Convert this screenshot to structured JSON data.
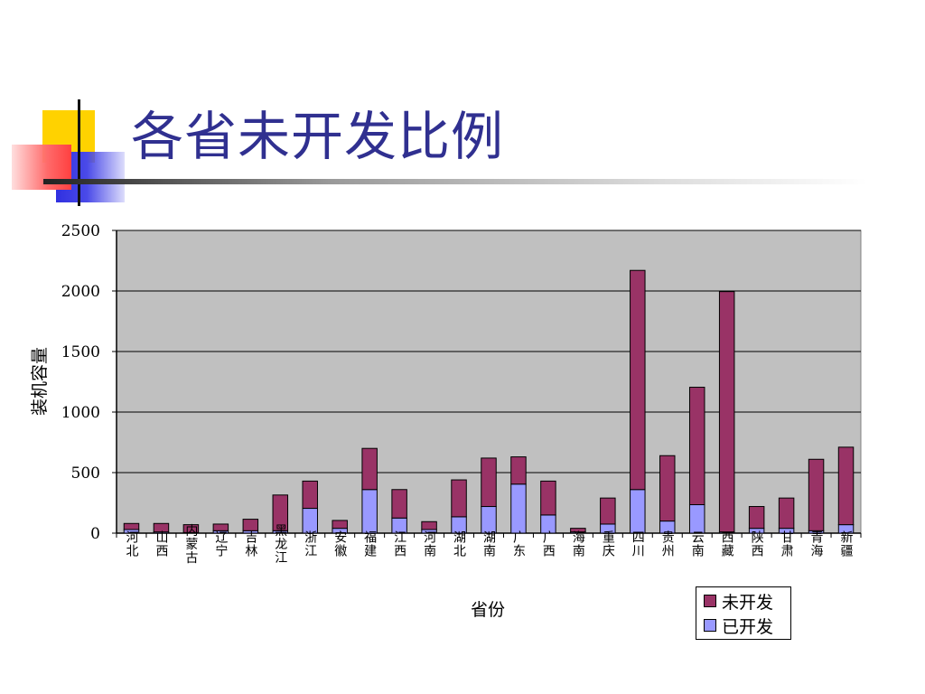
{
  "slide": {
    "title": "各省未开发比例"
  },
  "colors": {
    "developed": "#9999ff",
    "undeveloped": "#993366",
    "plot_bg": "#c0c0c0"
  },
  "chart_data": {
    "type": "bar",
    "stacked": true,
    "xlabel": "省份",
    "ylabel": "装机容量",
    "ylim": [
      0,
      2500
    ],
    "yticks": [
      "0",
      "500",
      "1000",
      "1500",
      "2000",
      "2500"
    ],
    "grid": true,
    "legend_position": "bottom-right",
    "categories": [
      "河北",
      "山西",
      "内蒙古",
      "辽宁",
      "吉林",
      "黑龙江",
      "浙江",
      "安徽",
      "福建",
      "江西",
      "河南",
      "湖北",
      "湖南",
      "广东",
      "广西",
      "海南",
      "重庆",
      "四川",
      "贵州",
      "云南",
      "西藏",
      "陕西",
      "甘肃",
      "青海",
      "新疆"
    ],
    "series": [
      {
        "name": "已开发",
        "values": [
          30,
          10,
          5,
          20,
          20,
          20,
          205,
          40,
          360,
          125,
          30,
          135,
          220,
          405,
          150,
          10,
          75,
          360,
          100,
          235,
          10,
          40,
          40,
          20,
          70
        ]
      },
      {
        "name": "未开发",
        "values": [
          50,
          70,
          65,
          55,
          95,
          295,
          225,
          65,
          340,
          235,
          65,
          305,
          400,
          225,
          280,
          30,
          215,
          1810,
          540,
          970,
          1985,
          180,
          250,
          590,
          640
        ]
      }
    ]
  }
}
